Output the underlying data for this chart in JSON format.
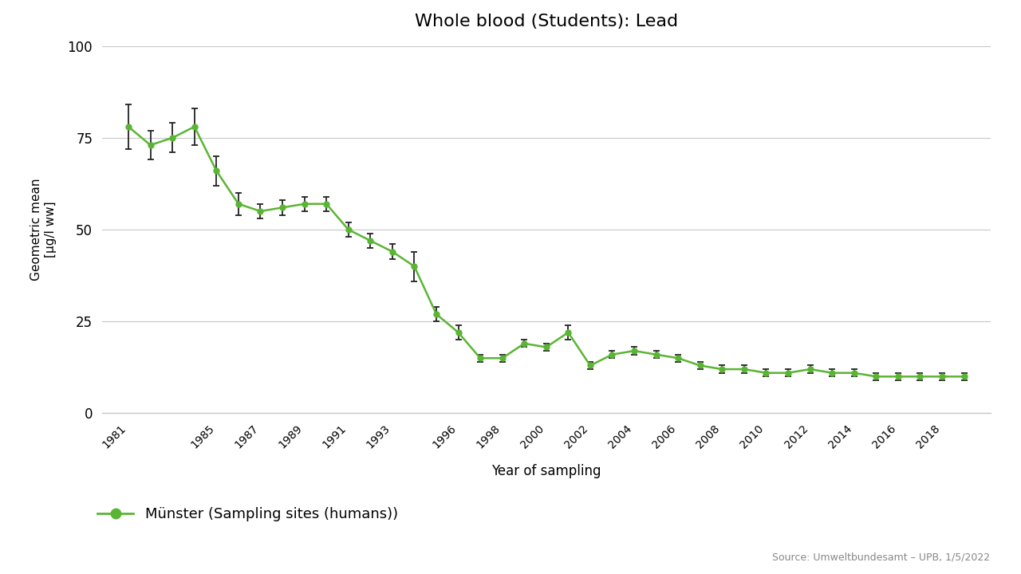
{
  "title": "Whole blood (Students): Lead",
  "xlabel": "Year of sampling",
  "ylabel": "Geometric mean\n[µg/l ww]",
  "source": "Source: Umweltbundesamt – UPB, 1/5/2022",
  "legend_label": "Münster (Sampling sites (humans))",
  "line_color": "#5ab534",
  "marker_color": "#5ab534",
  "error_color": "#222222",
  "background_color": "#ffffff",
  "grid_color": "#c8c8c8",
  "ylim": [
    0,
    100
  ],
  "yticks": [
    0,
    25,
    50,
    75,
    100
  ],
  "xtick_labels": [
    "1981",
    "1985",
    "1987",
    "1989",
    "1991",
    "1993",
    "1996",
    "1998",
    "2000",
    "2002",
    "2004",
    "2006",
    "2008",
    "2010",
    "2012",
    "2014",
    "2016",
    "2018"
  ],
  "years": [
    1981,
    1982,
    1983,
    1984,
    1985,
    1986,
    1987,
    1988,
    1989,
    1990,
    1991,
    1992,
    1993,
    1994,
    1995,
    1996,
    1997,
    1998,
    1999,
    2000,
    2001,
    2002,
    2003,
    2004,
    2005,
    2006,
    2007,
    2008,
    2009,
    2010,
    2011,
    2012,
    2013,
    2014,
    2015,
    2016,
    2017,
    2018,
    2019
  ],
  "values": [
    78,
    73,
    75,
    78,
    66,
    57,
    55,
    56,
    57,
    57,
    50,
    47,
    44,
    40,
    27,
    22,
    15,
    15,
    19,
    18,
    22,
    13,
    16,
    17,
    16,
    15,
    13,
    12,
    12,
    11,
    11,
    12,
    11,
    11,
    10,
    10,
    10,
    10,
    10
  ],
  "yerr_low": [
    6,
    4,
    4,
    5,
    4,
    3,
    2,
    2,
    2,
    2,
    2,
    2,
    2,
    4,
    2,
    2,
    1,
    1,
    1,
    1,
    2,
    1,
    1,
    1,
    1,
    1,
    1,
    1,
    1,
    1,
    1,
    1,
    1,
    1,
    1,
    1,
    1,
    1,
    1
  ],
  "yerr_high": [
    6,
    4,
    4,
    5,
    4,
    3,
    2,
    2,
    2,
    2,
    2,
    2,
    2,
    4,
    2,
    2,
    1,
    1,
    1,
    1,
    2,
    1,
    1,
    1,
    1,
    1,
    1,
    1,
    1,
    1,
    1,
    1,
    1,
    1,
    1,
    1,
    1,
    1,
    1
  ],
  "xlim_left": 1979.8,
  "xlim_right": 2020.2
}
